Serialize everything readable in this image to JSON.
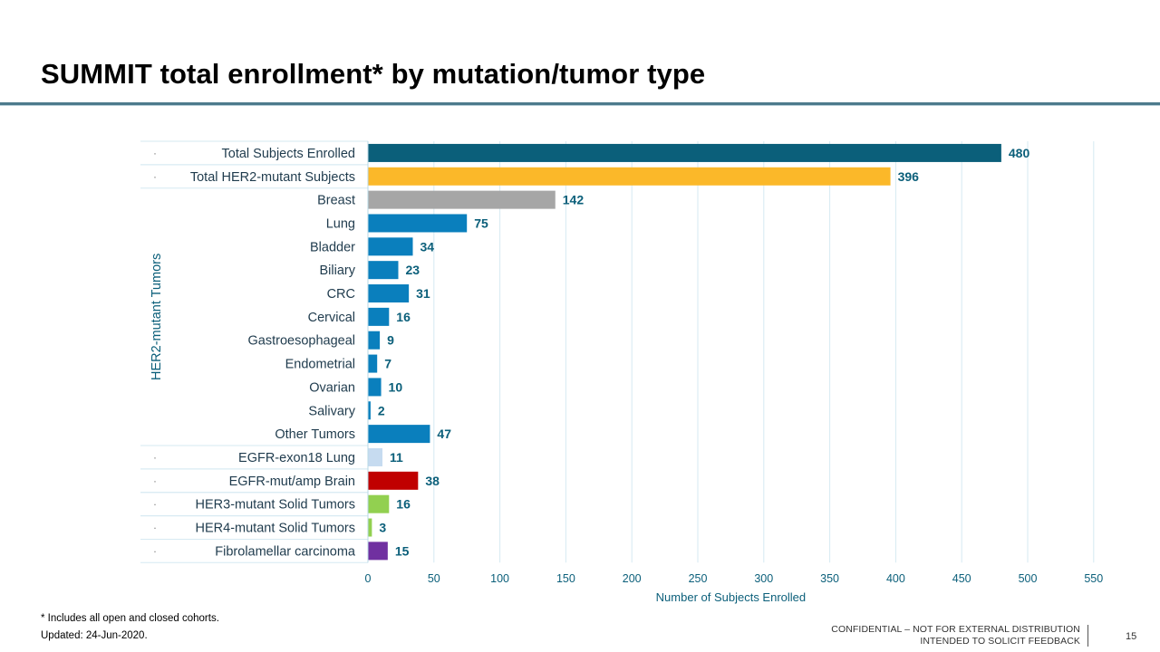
{
  "slide": {
    "title": "SUMMIT total enrollment* by mutation/tumor type",
    "footnotes": [
      "* Includes all open and closed cohorts.",
      "Updated: 24-Jun-2020."
    ],
    "confidential_lines": [
      "CONFIDENTIAL – NOT FOR EXTERNAL DISTRIBUTION",
      "INTENDED TO SOLICIT FEEDBACK"
    ],
    "page_number": "15"
  },
  "chart_data": {
    "type": "bar",
    "orientation": "horizontal",
    "title": "",
    "xlabel": "Number of Subjects Enrolled",
    "group_label": "HER2-mutant Tumors",
    "xlim": [
      0,
      550
    ],
    "xticks": [
      0,
      50,
      100,
      150,
      200,
      250,
      300,
      350,
      400,
      450,
      500,
      550
    ],
    "grid": true,
    "categories": [
      "Total Subjects Enrolled",
      "Total HER2-mutant Subjects",
      "Breast",
      "Lung",
      "Bladder",
      "Biliary",
      "CRC",
      "Cervical",
      "Gastroesophageal",
      "Endometrial",
      "Ovarian",
      "Salivary",
      "Other Tumors",
      "EGFR-exon18 Lung",
      "EGFR-mut/amp Brain",
      "HER3-mutant Solid Tumors",
      "HER4-mutant Solid Tumors",
      "Fibrolamellar carcinoma"
    ],
    "values": [
      480,
      396,
      142,
      75,
      34,
      23,
      31,
      16,
      9,
      7,
      10,
      2,
      47,
      11,
      38,
      16,
      3,
      15
    ],
    "colors": [
      "#0b5f7a",
      "#fbb829",
      "#a6a6a6",
      "#0a7fbd",
      "#0a7fbd",
      "#0a7fbd",
      "#0a7fbd",
      "#0a7fbd",
      "#0a7fbd",
      "#0a7fbd",
      "#0a7fbd",
      "#0a7fbd",
      "#0a7fbd",
      "#c6dbf0",
      "#c00000",
      "#92d050",
      "#92d050",
      "#7030a0"
    ],
    "value_label_color": "#0b5f7a",
    "category_label_color": "#1f3b4d",
    "axis_label_color": "#0b5f7a",
    "bullet": "·",
    "bulleted_rows": [
      0,
      1,
      13,
      14,
      15,
      16,
      17
    ],
    "group_rows": [
      2,
      12
    ]
  }
}
